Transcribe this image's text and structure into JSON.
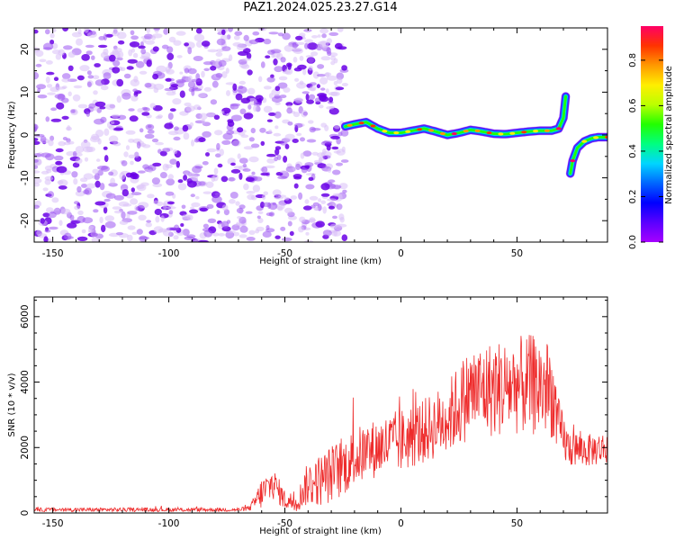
{
  "title": "PAZ1.2024.025.23.27.G14",
  "colors": {
    "snr_line": "#ee2c2c",
    "noise_purple": "#9d55f2",
    "noise_dark": "#6a00e6",
    "colorbar": [
      "#a600ff",
      "#5a00ff",
      "#0000ff",
      "#0066ff",
      "#00d5ff",
      "#00ff80",
      "#22ff00",
      "#bbff00",
      "#ffee00",
      "#ff9900",
      "#ff3300",
      "#ff0066"
    ]
  },
  "chart_data": [
    {
      "type": "heatmap",
      "xlabel": "Height of straight line (km)",
      "ylabel": "Frequency (Hz)",
      "xlim": [
        -158,
        89
      ],
      "ylim": [
        -25,
        25
      ],
      "x_ticks": [
        -150,
        -100,
        -50,
        0,
        50
      ],
      "y_ticks": [
        -20,
        -10,
        0,
        10,
        20
      ],
      "colorbar_label": "Normalized spectral amplitude",
      "colorbar_ticks": [
        "0.0",
        "0.2",
        "0.4",
        "0.6",
        "0.8"
      ],
      "colorbar_range": [
        0,
        0.95
      ],
      "noise_region_x": [
        -158,
        -24
      ],
      "signal_ridge": {
        "x": [
          -24,
          -20,
          -15,
          -10,
          -5,
          0,
          5,
          10,
          15,
          20,
          25,
          30,
          35,
          40,
          45,
          50,
          55,
          60,
          65,
          68,
          70,
          71
        ],
        "freq": [
          2,
          2.5,
          3,
          1.5,
          0.5,
          0.5,
          1,
          1.5,
          0.8,
          0,
          0.5,
          1.2,
          0.8,
          0.3,
          0.2,
          0.5,
          0.8,
          1,
          1,
          1.5,
          4,
          9
        ]
      },
      "signal_branch2": {
        "x": [
          73,
          74,
          76,
          79,
          82,
          85,
          89
        ],
        "freq": [
          -9,
          -6,
          -3,
          -1.5,
          -0.8,
          -0.5,
          -0.5
        ]
      }
    },
    {
      "type": "line",
      "xlabel": "Height of straight line (km)",
      "ylabel": "SNR (10 * v/v)",
      "xlim": [
        -158,
        89
      ],
      "ylim": [
        0,
        6600
      ],
      "x_ticks": [
        -150,
        -100,
        -50,
        0,
        50
      ],
      "y_ticks": [
        0,
        2000,
        4000,
        6000
      ],
      "envelope": {
        "x": [
          -158,
          -70,
          -65,
          -60,
          -55,
          -50,
          -45,
          -42,
          -40,
          -35,
          -30,
          -25,
          -20,
          -10,
          0,
          10,
          20,
          25,
          30,
          40,
          50,
          60,
          65,
          68,
          72,
          80,
          89
        ],
        "mean": [
          100,
          100,
          150,
          600,
          900,
          400,
          300,
          700,
          900,
          1000,
          1200,
          1400,
          1700,
          2000,
          2200,
          2500,
          2900,
          3300,
          3700,
          3800,
          3900,
          3900,
          3700,
          2600,
          2000,
          1900,
          2000
        ],
        "amplitude": [
          60,
          60,
          80,
          500,
          500,
          300,
          300,
          500,
          700,
          800,
          900,
          900,
          900,
          900,
          1000,
          1000,
          1100,
          1300,
          1400,
          1500,
          1500,
          1600,
          1400,
          900,
          600,
          500,
          500
        ]
      }
    }
  ]
}
